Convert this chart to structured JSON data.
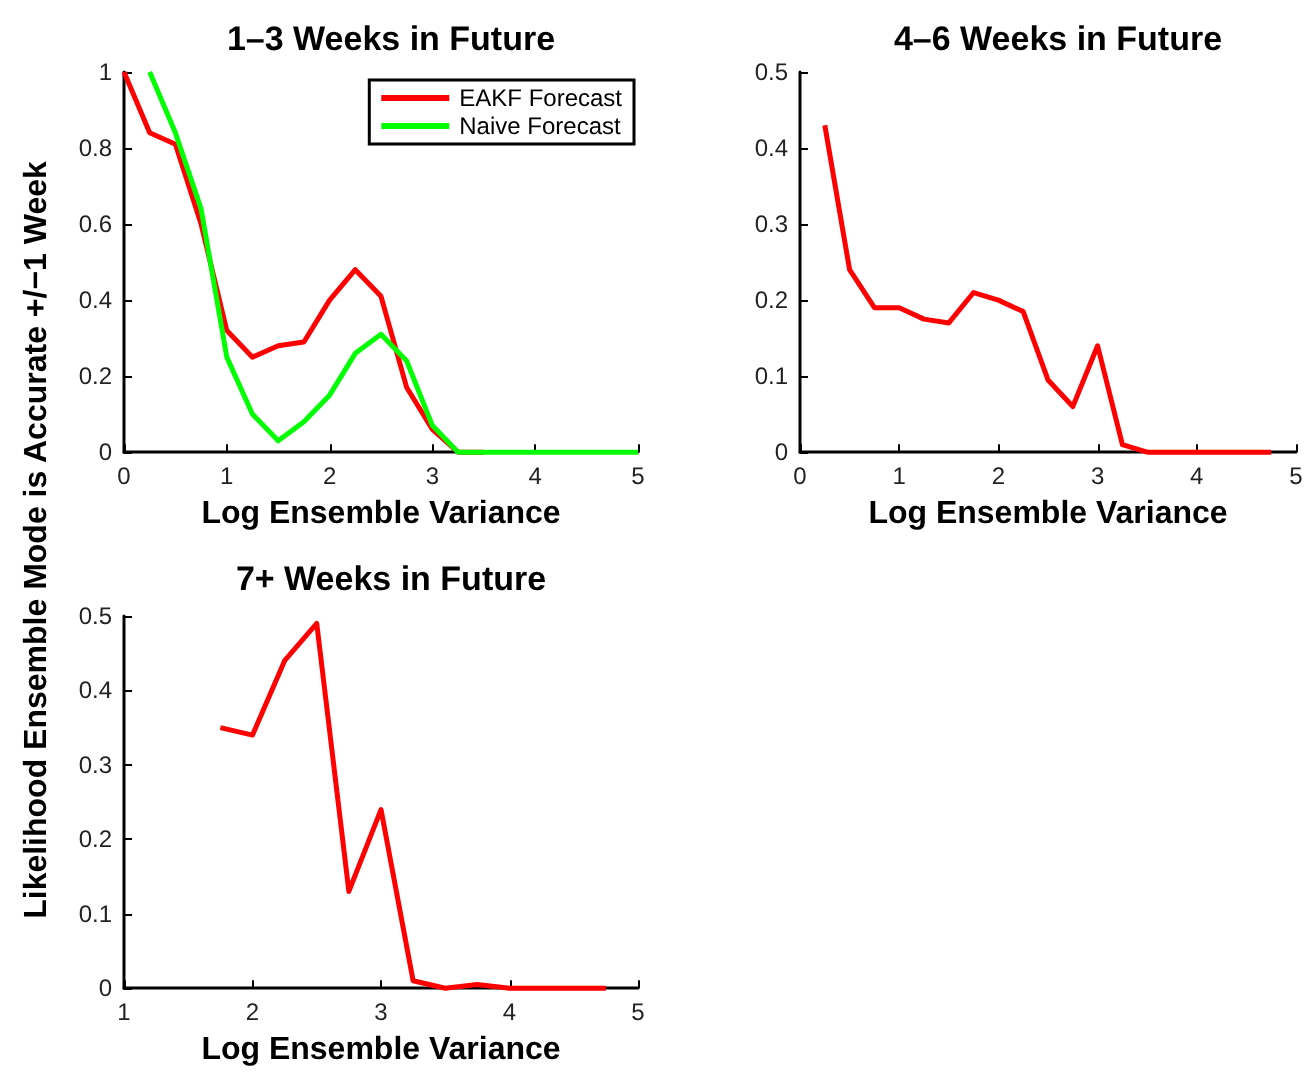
{
  "chart_data": [
    {
      "type": "line",
      "title": "1–3 Weeks in Future",
      "xlabel": "Log Ensemble Variance",
      "ylabel": "Likelihood Ensemble Mode is Accurate +/−1 Week",
      "xlim": [
        0,
        5
      ],
      "xticks": [
        0,
        1,
        2,
        3,
        4,
        5
      ],
      "ylim": [
        0,
        1
      ],
      "yticks": [
        0,
        0.2,
        0.4,
        0.6,
        0.8,
        1
      ],
      "grid": false,
      "legend": "top right",
      "marker": "none",
      "line_style": "solid",
      "series": [
        {
          "name": "EAKF Forecast",
          "color": "#ff0000",
          "x": [
            0,
            0.25,
            0.5,
            0.75,
            1,
            1.25,
            1.5,
            1.75,
            2,
            2.25,
            2.5,
            2.75,
            3,
            3.25,
            3.5
          ],
          "values": [
            1.0,
            0.84,
            0.81,
            0.6,
            0.32,
            0.25,
            0.28,
            0.29,
            0.4,
            0.48,
            0.41,
            0.17,
            0.06,
            0,
            0
          ]
        },
        {
          "name": "Naive Forecast",
          "color": "#00ff00",
          "x": [
            0.25,
            0.5,
            0.75,
            1,
            1.25,
            1.5,
            1.75,
            2,
            2.25,
            2.5,
            2.75,
            3,
            3.25,
            3.5,
            3.75,
            4,
            4.25,
            4.5,
            4.75,
            5
          ],
          "values": [
            1.0,
            0.84,
            0.64,
            0.25,
            0.1,
            0.03,
            0.08,
            0.15,
            0.26,
            0.31,
            0.24,
            0.07,
            0,
            0,
            0,
            0,
            0,
            0,
            0,
            0
          ]
        }
      ]
    },
    {
      "type": "line",
      "title": "4–6 Weeks in Future",
      "xlabel": "Log Ensemble Variance",
      "xlim": [
        0,
        5
      ],
      "xticks": [
        0,
        1,
        2,
        3,
        4,
        5
      ],
      "ylim": [
        0,
        0.5
      ],
      "yticks": [
        0,
        0.1,
        0.2,
        0.3,
        0.4,
        0.5
      ],
      "grid": false,
      "marker": "none",
      "line_style": "solid",
      "series": [
        {
          "color": "#ff0000",
          "x": [
            0.25,
            0.5,
            0.75,
            1,
            1.25,
            1.5,
            1.75,
            2,
            2.25,
            2.5,
            2.75,
            3,
            3.25,
            3.5,
            3.75,
            4,
            4.25,
            4.5,
            4.75
          ],
          "values": [
            0.43,
            0.24,
            0.19,
            0.19,
            0.175,
            0.17,
            0.21,
            0.2,
            0.185,
            0.095,
            0.06,
            0.14,
            0.01,
            0,
            0,
            0,
            0,
            0,
            0
          ]
        }
      ]
    },
    {
      "type": "line",
      "title": "7+ Weeks in Future",
      "xlabel": "Log Ensemble Variance",
      "xlim": [
        1,
        5
      ],
      "xticks": [
        1,
        2,
        3,
        4,
        5
      ],
      "ylim": [
        0,
        0.5
      ],
      "yticks": [
        0,
        0.1,
        0.2,
        0.3,
        0.4,
        0.5
      ],
      "grid": false,
      "marker": "none",
      "line_style": "solid",
      "series": [
        {
          "color": "#ff0000",
          "x": [
            1.75,
            2,
            2.25,
            2.5,
            2.75,
            3,
            3.25,
            3.5,
            3.75,
            4,
            4.25,
            4.5,
            4.75
          ],
          "values": [
            0.35,
            0.34,
            0.44,
            0.49,
            0.13,
            0.24,
            0.01,
            0,
            0.005,
            0,
            0,
            0,
            0
          ]
        }
      ]
    }
  ]
}
